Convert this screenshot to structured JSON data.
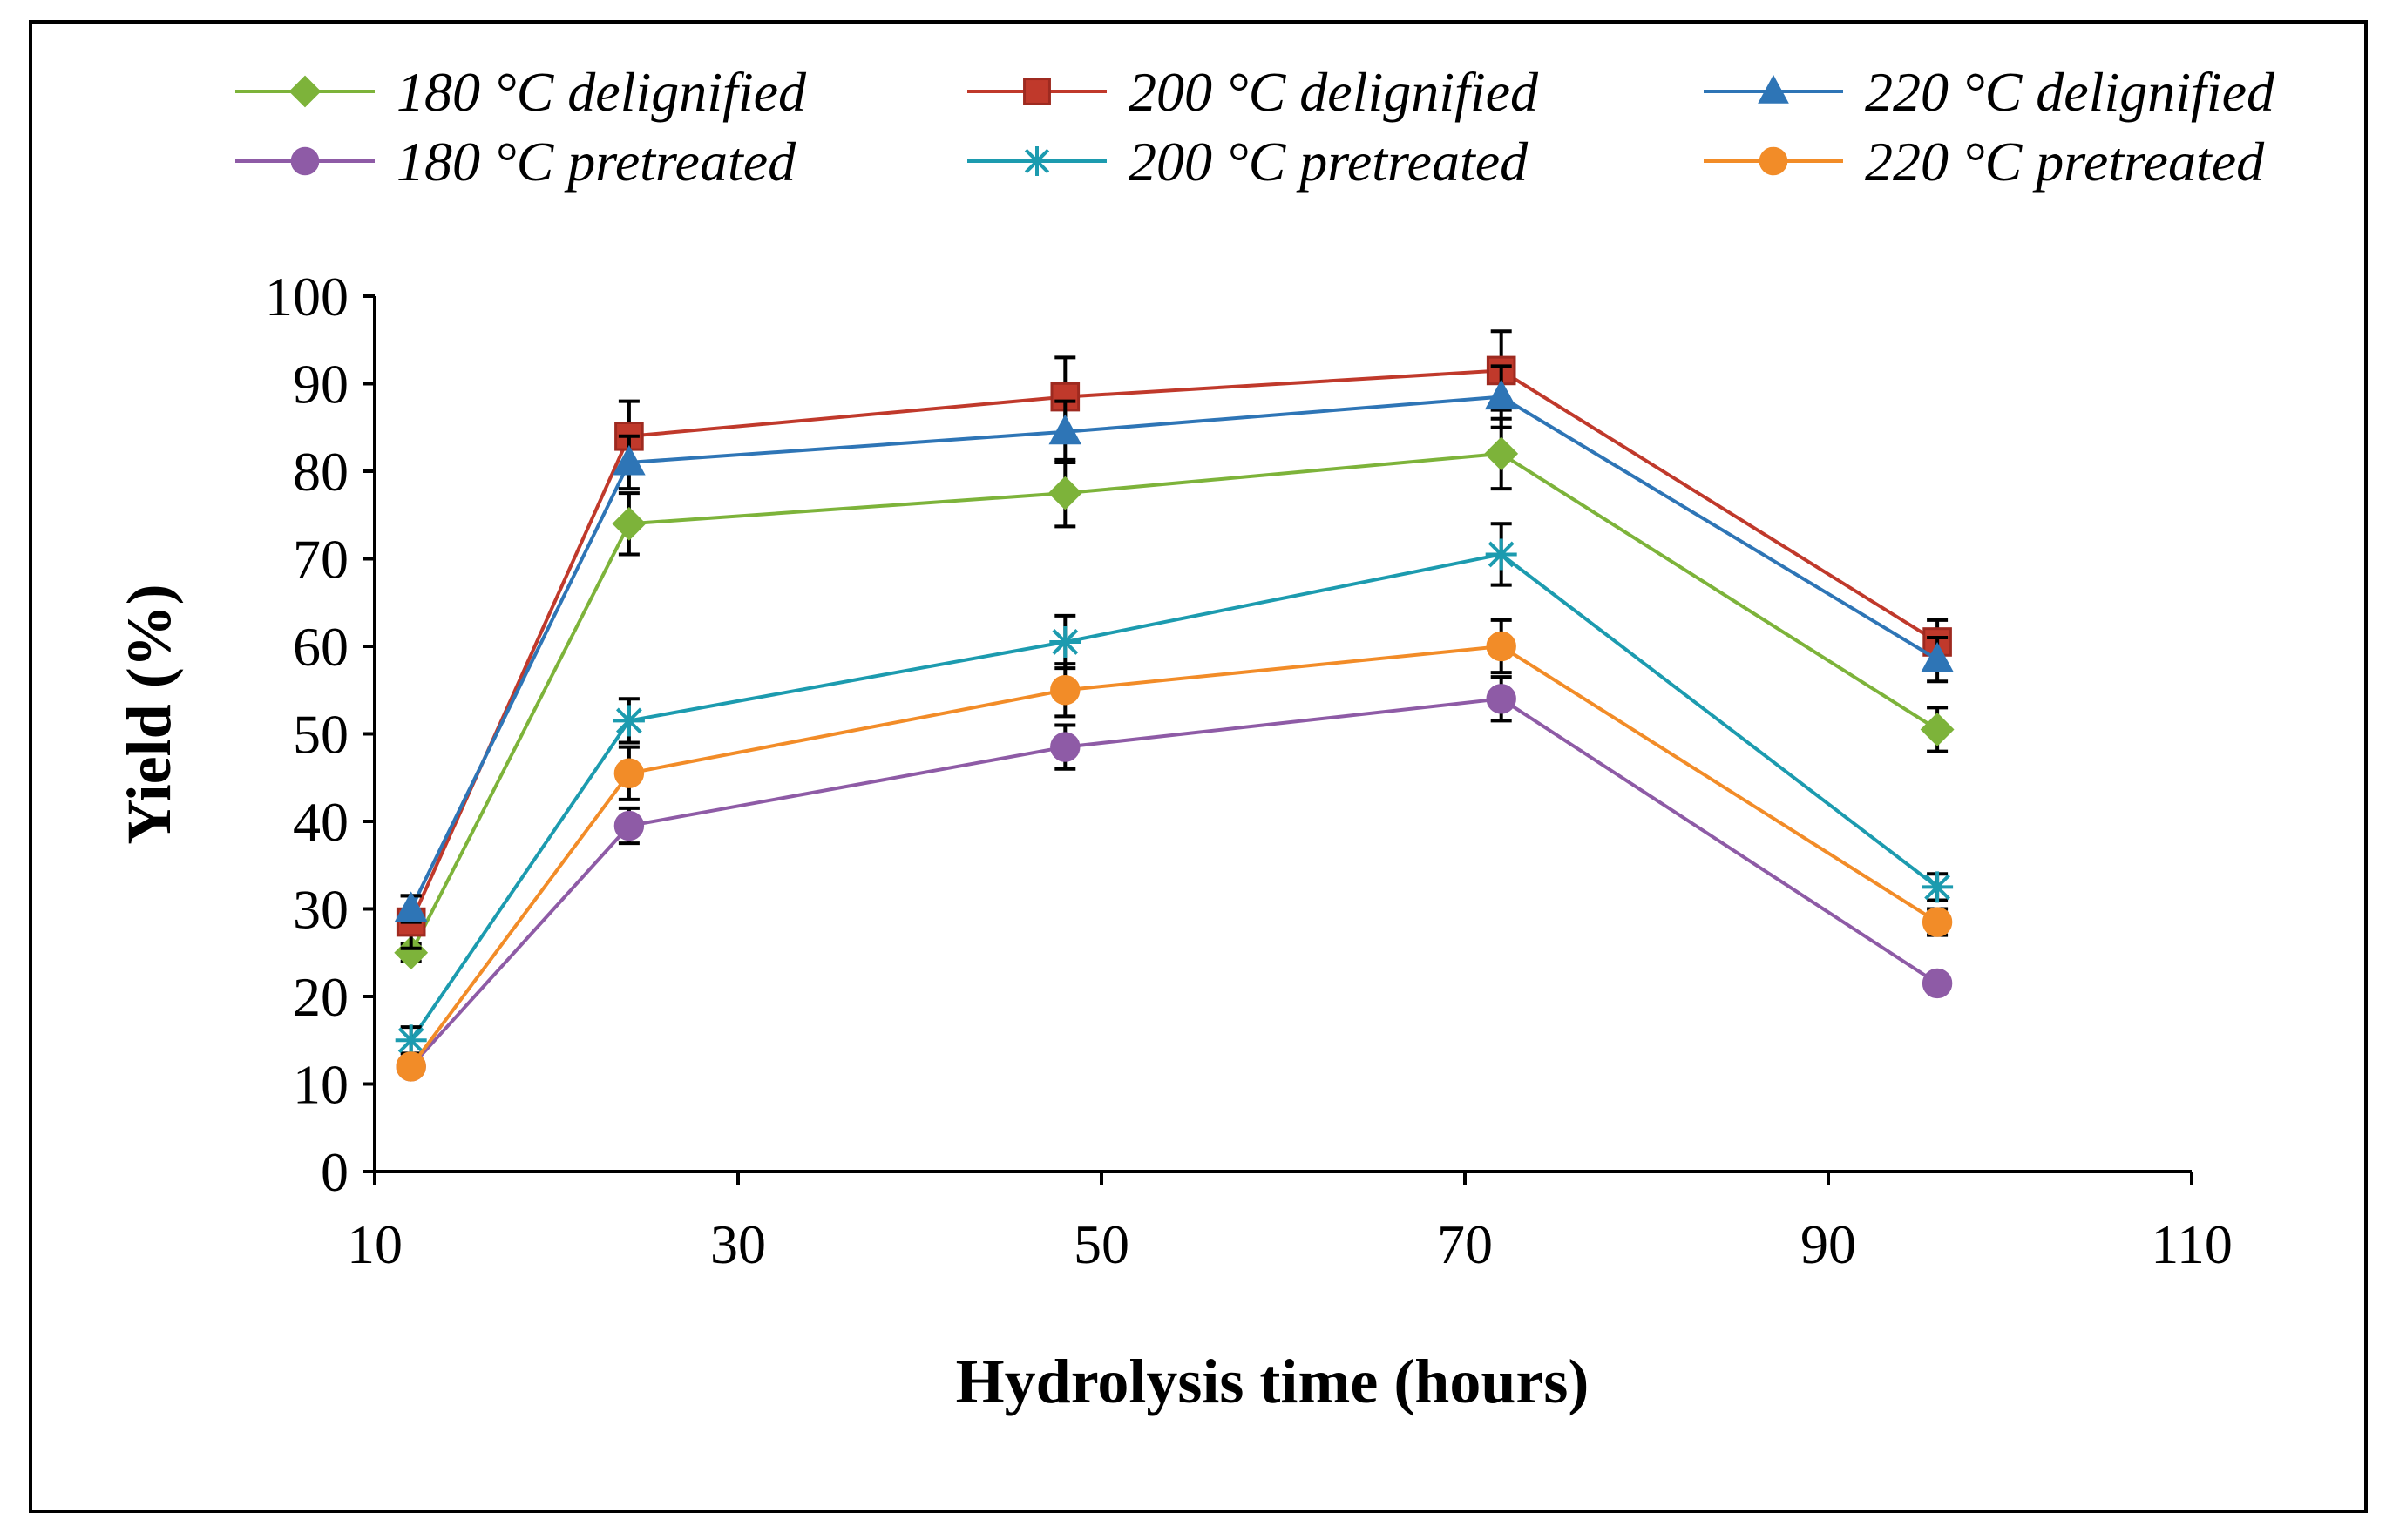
{
  "chart_data": {
    "type": "line",
    "title": "",
    "xlabel": "Hydrolysis time (hours)",
    "ylabel": "Yield (%)",
    "xlim": [
      10,
      110
    ],
    "ylim": [
      0,
      100
    ],
    "xticks": [
      10,
      30,
      50,
      70,
      90,
      110
    ],
    "yticks": [
      0,
      10,
      20,
      30,
      40,
      50,
      60,
      70,
      80,
      90,
      100
    ],
    "x": [
      12,
      24,
      48,
      72,
      96
    ],
    "grid": false,
    "legend_position": "top",
    "series": [
      {
        "name": "180 °C delignified",
        "color": "#7DB33A",
        "marker": "diamond",
        "values": [
          25,
          74,
          77.5,
          82,
          50.5
        ],
        "errors": [
          1,
          3.5,
          3.8,
          4,
          2.5
        ]
      },
      {
        "name": "200 °C delignified",
        "color": "#C0392B",
        "marker": "square",
        "values": [
          28.5,
          84,
          88.5,
          91.5,
          60.5
        ],
        "errors": [
          3,
          4,
          4.5,
          4.5,
          2.5
        ]
      },
      {
        "name": "220 °C delignified",
        "color": "#2E75B6",
        "marker": "triangle",
        "values": [
          30,
          81,
          84.5,
          88.5,
          58.5
        ],
        "errors": [
          1.5,
          3,
          3.5,
          3.5,
          2.5
        ]
      },
      {
        "name": "180 °C pretreated",
        "color": "#8E5BA6",
        "marker": "circle",
        "values": [
          12,
          39.5,
          48.5,
          54,
          21.5
        ],
        "errors": [
          1,
          2,
          2.5,
          2.5,
          1
        ]
      },
      {
        "name": "200 °C pretreated",
        "color": "#1C9BAF",
        "marker": "star",
        "values": [
          15,
          51.5,
          60.5,
          70.5,
          32.5
        ],
        "errors": [
          1.5,
          2.5,
          3,
          3.5,
          1.5
        ]
      },
      {
        "name": "220 °C pretreated",
        "color": "#F28C28",
        "marker": "circle",
        "values": [
          12,
          45.5,
          55,
          60,
          28.5
        ],
        "errors": [
          1,
          3,
          3,
          3,
          1.5
        ]
      }
    ]
  }
}
